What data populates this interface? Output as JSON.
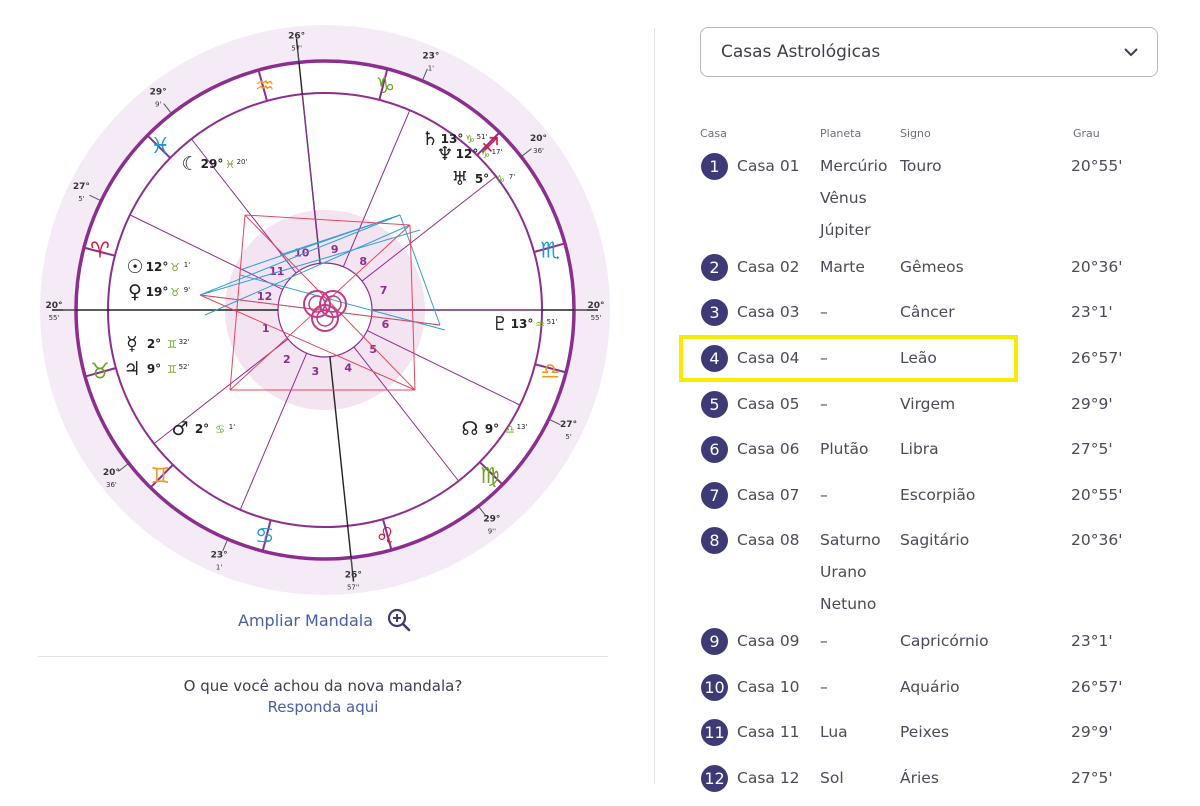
{
  "wheel": {
    "sign_glyphs": [
      "♈",
      "♉",
      "♊",
      "♋",
      "♌",
      "♍",
      "♎",
      "♏",
      "♐",
      "♑",
      "♒",
      "♓"
    ],
    "sign_colors": [
      "#e0143c",
      "#6aa51f",
      "#f29a1f",
      "#1b9ad6",
      "#e0143c",
      "#6aa51f",
      "#f29a1f",
      "#1b9ad6",
      "#e0143c",
      "#6aa51f",
      "#f29a1f",
      "#1b9ad6"
    ],
    "house_numbers": [
      "1",
      "2",
      "3",
      "4",
      "5",
      "6",
      "7",
      "8",
      "9",
      "10",
      "11",
      "12"
    ],
    "cusp_labels": [
      {
        "deg": "20°",
        "min": "55'"
      },
      {
        "deg": "20°",
        "min": "36'"
      },
      {
        "deg": "23°",
        "min": "1'"
      },
      {
        "deg": "26°",
        "min": "57''"
      },
      {
        "deg": "29°",
        "min": "9''"
      },
      {
        "deg": "27°",
        "min": "5'"
      },
      {
        "deg": "20°",
        "min": "55'"
      },
      {
        "deg": "20°",
        "min": "36'"
      },
      {
        "deg": "23°",
        "min": "1'"
      },
      {
        "deg": "26°",
        "min": "57'"
      },
      {
        "deg": "29°",
        "min": "9'"
      },
      {
        "deg": "27°",
        "min": "5'"
      }
    ],
    "planets": [
      {
        "glyph": "☉",
        "deg": "12°",
        "sign": "♉",
        "min": "1'"
      },
      {
        "glyph": "♀",
        "deg": "19°",
        "sign": "♉",
        "min": "9'"
      },
      {
        "glyph": "☿",
        "deg": "2°",
        "sign": "♊",
        "min": "32'"
      },
      {
        "glyph": "♃",
        "deg": "9°",
        "sign": "♊",
        "min": "52'"
      },
      {
        "glyph": "♂",
        "deg": "2°",
        "sign": "♋",
        "min": "1'"
      },
      {
        "glyph": "☾",
        "deg": "29°",
        "sign": "♓",
        "min": "20'"
      },
      {
        "glyph": "♄",
        "deg": "13°",
        "sign": "♑",
        "min": "51'"
      },
      {
        "glyph": "♆",
        "deg": "12°",
        "sign": "♑",
        "min": "17'"
      },
      {
        "glyph": "♅",
        "deg": "5°",
        "sign": "♑",
        "min": "7'"
      },
      {
        "glyph": "♇",
        "deg": "13°",
        "sign": "♒",
        "min": "51'"
      },
      {
        "glyph": "☊",
        "deg": "9°",
        "sign": "♎",
        "min": "13'"
      }
    ],
    "zoom_label": "Ampliar Mandala"
  },
  "feedback": {
    "question": "O que você achou da nova mandala?",
    "link": "Responda aqui"
  },
  "select": {
    "value": "Casas Astrológicas"
  },
  "table": {
    "headers": {
      "house": "Casa",
      "planet": "Planeta",
      "sign": "Signo",
      "degree": "Grau"
    },
    "rows": [
      {
        "num": "1",
        "house": "Casa 01",
        "planets": [
          "Mercúrio",
          "Vênus",
          "Júpiter"
        ],
        "sign": "Touro",
        "degree": "20°55'"
      },
      {
        "num": "2",
        "house": "Casa 02",
        "planets": [
          "Marte"
        ],
        "sign": "Gêmeos",
        "degree": "20°36'"
      },
      {
        "num": "3",
        "house": "Casa 03",
        "planets": [
          "–"
        ],
        "sign": "Câncer",
        "degree": "23°1'"
      },
      {
        "num": "4",
        "house": "Casa 04",
        "planets": [
          "–"
        ],
        "sign": "Leão",
        "degree": "26°57'"
      },
      {
        "num": "5",
        "house": "Casa 05",
        "planets": [
          "–"
        ],
        "sign": "Virgem",
        "degree": "29°9'"
      },
      {
        "num": "6",
        "house": "Casa 06",
        "planets": [
          "Plutão"
        ],
        "sign": "Libra",
        "degree": "27°5'"
      },
      {
        "num": "7",
        "house": "Casa 07",
        "planets": [
          "–"
        ],
        "sign": "Escorpião",
        "degree": "20°55'"
      },
      {
        "num": "8",
        "house": "Casa 08",
        "planets": [
          "Saturno",
          "Urano",
          "Netuno"
        ],
        "sign": "Sagitário",
        "degree": "20°36'"
      },
      {
        "num": "9",
        "house": "Casa 09",
        "planets": [
          "–"
        ],
        "sign": "Capricórnio",
        "degree": "23°1'"
      },
      {
        "num": "10",
        "house": "Casa 10",
        "planets": [
          "–"
        ],
        "sign": "Aquário",
        "degree": "26°57'"
      },
      {
        "num": "11",
        "house": "Casa 11",
        "planets": [
          "Lua"
        ],
        "sign": "Peixes",
        "degree": "29°9'"
      },
      {
        "num": "12",
        "house": "Casa 12",
        "planets": [
          "Sol"
        ],
        "sign": "Áries",
        "degree": "27°5'"
      }
    ]
  },
  "highlighted_row": 4,
  "colors": {
    "accent_purple": "#8b2e8f",
    "badge_navy": "#3e3a78",
    "link_blue": "#4a5ea8",
    "highlight_yellow": "#f5ec00",
    "aspect_blue": "#2f9fd4",
    "aspect_red": "#e3475d"
  }
}
